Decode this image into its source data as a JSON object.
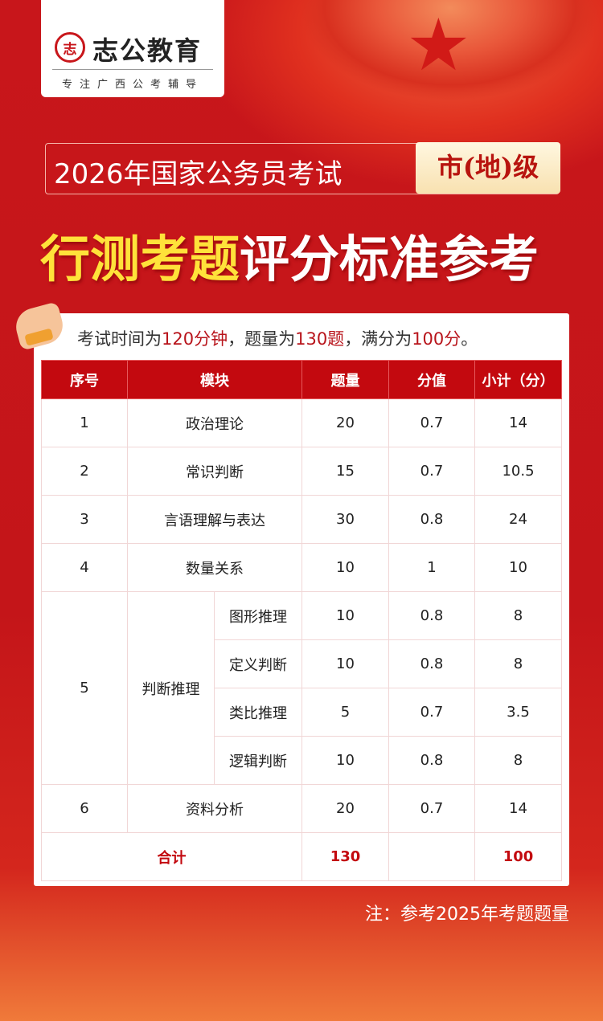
{
  "logo": {
    "name": "志公教育",
    "seal": "志",
    "slogan": "专注广西公考辅导"
  },
  "title": {
    "line1": "2026年国家公务员考试",
    "tag": "市(地)级",
    "main_yellow": "行测考题",
    "main_white": "评分标准参考"
  },
  "intro": {
    "p1": "考试时间为",
    "v1": "120分钟",
    "p2": "，题量为",
    "v2": "130题",
    "p3": "，满分为",
    "v3": "100分",
    "p4": "。"
  },
  "table": {
    "headers": [
      "序号",
      "模块",
      "题量",
      "分值",
      "小计（分）"
    ],
    "rows": [
      {
        "no": "1",
        "module": "政治理论",
        "count": "20",
        "score": "0.7",
        "subtotal": "14"
      },
      {
        "no": "2",
        "module": "常识判断",
        "count": "15",
        "score": "0.7",
        "subtotal": "10.5"
      },
      {
        "no": "3",
        "module": "言语理解与表达",
        "count": "30",
        "score": "0.8",
        "subtotal": "24"
      },
      {
        "no": "4",
        "module": "数量关系",
        "count": "10",
        "score": "1",
        "subtotal": "10"
      }
    ],
    "group": {
      "no": "5",
      "module": "判断推理",
      "subs": [
        {
          "name": "图形推理",
          "count": "10",
          "score": "0.8",
          "subtotal": "8"
        },
        {
          "name": "定义判断",
          "count": "10",
          "score": "0.8",
          "subtotal": "8"
        },
        {
          "name": "类比推理",
          "count": "5",
          "score": "0.7",
          "subtotal": "3.5"
        },
        {
          "name": "逻辑判断",
          "count": "10",
          "score": "0.8",
          "subtotal": "8"
        }
      ]
    },
    "row6": {
      "no": "6",
      "module": "资料分析",
      "count": "20",
      "score": "0.7",
      "subtotal": "14"
    },
    "total": {
      "label": "合计",
      "count": "130",
      "subtotal": "100"
    }
  },
  "note": "注：参考2025年考题题量",
  "colors": {
    "accent": "#c3090f",
    "highlight": "#ffe23a"
  }
}
